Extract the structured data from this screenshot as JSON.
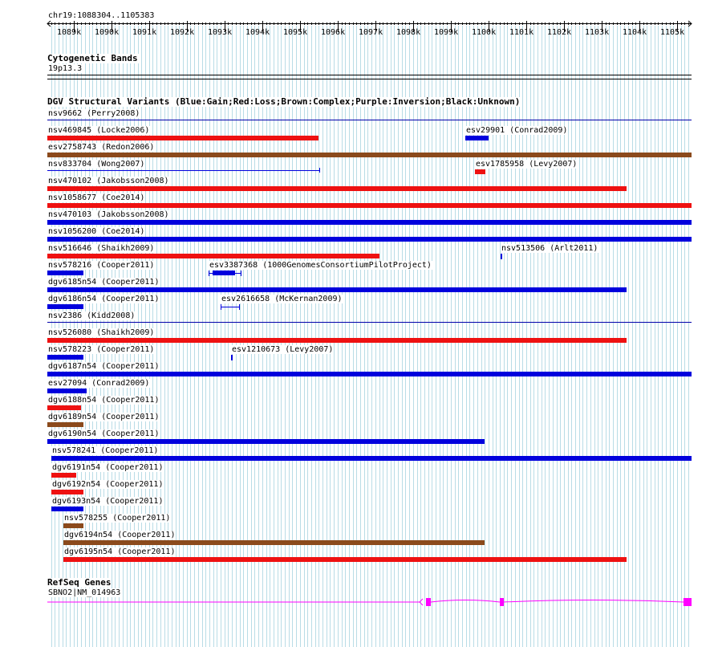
{
  "region_label": "chr19:1088304..1105383",
  "ruler": {
    "start_bp": 1088304,
    "end_bp": 1105383,
    "unit": "k",
    "ticks": [
      "1089k",
      "1090k",
      "1091k",
      "1092k",
      "1093k",
      "1094k",
      "1095k",
      "1096k",
      "1097k",
      "1098k",
      "1099k",
      "1100k",
      "1101k",
      "1102k",
      "1103k",
      "1104k",
      "1105k"
    ]
  },
  "tracks": {
    "cytobands": {
      "title": "Cytogenetic Bands",
      "band": "19p13.3"
    },
    "dgv": {
      "title": "DGV Structural Variants (Blue:Gain;Red:Loss;Brown:Complex;Purple:Inversion;Black:Unknown)",
      "colors": {
        "gain": "#0000dd",
        "loss": "#ee1111",
        "complex": "#8b4a1c"
      },
      "rows": [
        {
          "features": [
            {
              "id": "nsv9662",
              "label": "nsv9662 (Perry2008)",
              "start": 1088304,
              "end": 1105383,
              "kind": "line"
            }
          ]
        },
        {
          "features": [
            {
              "id": "nsv469845",
              "label": "nsv469845 (Locke2006)",
              "start": 1088304,
              "end": 1095500,
              "kind": "loss"
            },
            {
              "id": "esv29901",
              "label": "esv29901 (Conrad2009)",
              "start": 1099380,
              "end": 1100000,
              "kind": "gain"
            }
          ]
        },
        {
          "features": [
            {
              "id": "esv2758743",
              "label": "esv2758743 (Redon2006)",
              "start": 1088304,
              "end": 1105383,
              "kind": "complex"
            }
          ]
        },
        {
          "features": [
            {
              "id": "nsv833704",
              "label": "nsv833704 (Wong2007)",
              "start": 1088304,
              "end": 1095520,
              "kind": "thin"
            },
            {
              "id": "esv1785958",
              "label": "esv1785958 (Levy2007)",
              "start": 1099650,
              "end": 1099920,
              "kind": "loss"
            }
          ]
        },
        {
          "features": [
            {
              "id": "nsv470102",
              "label": "nsv470102 (Jakobsson2008)",
              "start": 1088304,
              "end": 1103650,
              "kind": "loss"
            }
          ]
        },
        {
          "features": [
            {
              "id": "nsv1058677",
              "label": "nsv1058677 (Coe2014)",
              "start": 1088304,
              "end": 1105383,
              "kind": "loss"
            }
          ]
        },
        {
          "features": [
            {
              "id": "nsv470103",
              "label": "nsv470103 (Jakobsson2008)",
              "start": 1088304,
              "end": 1105383,
              "kind": "gain"
            }
          ]
        },
        {
          "features": [
            {
              "id": "nsv1056200",
              "label": "nsv1056200 (Coe2014)",
              "start": 1088304,
              "end": 1105383,
              "kind": "gain"
            }
          ]
        },
        {
          "features": [
            {
              "id": "nsv516646",
              "label": "nsv516646 (Shaikh2009)",
              "start": 1088304,
              "end": 1097110,
              "kind": "loss"
            },
            {
              "id": "nsv513506",
              "label": "nsv513506 (Arlt2011)",
              "start": 1100330,
              "end": 1100370,
              "kind": "gain"
            }
          ]
        },
        {
          "features": [
            {
              "id": "nsv578216",
              "label": "nsv578216 (Cooper2011)",
              "start": 1088304,
              "end": 1089260,
              "kind": "gain"
            },
            {
              "id": "esv3387368",
              "label": "esv3387368 (1000GenomesConsortiumPilotProject)",
              "start": 1092570,
              "end": 1093430,
              "kind": "gain-whisker"
            }
          ]
        },
        {
          "features": [
            {
              "id": "dgv6185n54",
              "label": "dgv6185n54 (Cooper2011)",
              "start": 1088304,
              "end": 1103650,
              "kind": "gain"
            }
          ]
        },
        {
          "features": [
            {
              "id": "dgv6186n54",
              "label": "dgv6186n54 (Cooper2011)",
              "start": 1088304,
              "end": 1089260,
              "kind": "gain"
            },
            {
              "id": "esv2616658",
              "label": "esv2616658 (McKernan2009)",
              "start": 1092900,
              "end": 1093380,
              "kind": "whisker"
            }
          ]
        },
        {
          "features": [
            {
              "id": "nsv2386",
              "label": "nsv2386 (Kidd2008)",
              "start": 1088304,
              "end": 1105383,
              "kind": "line"
            }
          ]
        },
        {
          "features": [
            {
              "id": "nsv526080",
              "label": "nsv526080 (Shaikh2009)",
              "start": 1088304,
              "end": 1103650,
              "kind": "loss"
            }
          ]
        },
        {
          "features": [
            {
              "id": "nsv578223",
              "label": "nsv578223 (Cooper2011)",
              "start": 1088304,
              "end": 1089260,
              "kind": "gain"
            },
            {
              "id": "esv1210673",
              "label": "esv1210673 (Levy2007)",
              "start": 1093180,
              "end": 1093220,
              "kind": "gain"
            }
          ]
        },
        {
          "features": [
            {
              "id": "dgv6187n54",
              "label": "dgv6187n54 (Cooper2011)",
              "start": 1088304,
              "end": 1105383,
              "kind": "gain"
            }
          ]
        },
        {
          "features": [
            {
              "id": "esv27094",
              "label": "esv27094 (Conrad2009)",
              "start": 1088304,
              "end": 1089340,
              "kind": "gain"
            }
          ]
        },
        {
          "features": [
            {
              "id": "dgv6188n54",
              "label": "dgv6188n54 (Cooper2011)",
              "start": 1088304,
              "end": 1089200,
              "kind": "loss"
            }
          ]
        },
        {
          "features": [
            {
              "id": "dgv6189n54",
              "label": "dgv6189n54 (Cooper2011)",
              "start": 1088304,
              "end": 1089260,
              "kind": "complex"
            }
          ]
        },
        {
          "features": [
            {
              "id": "dgv6190n54",
              "label": "dgv6190n54 (Cooper2011)",
              "start": 1088304,
              "end": 1099890,
              "kind": "gain"
            }
          ]
        },
        {
          "features": [
            {
              "id": "nsv578241",
              "label": "nsv578241 (Cooper2011)",
              "start": 1088420,
              "end": 1105383,
              "kind": "gain"
            }
          ]
        },
        {
          "features": [
            {
              "id": "dgv6191n54",
              "label": "dgv6191n54 (Cooper2011)",
              "start": 1088420,
              "end": 1089060,
              "kind": "loss"
            }
          ]
        },
        {
          "features": [
            {
              "id": "dgv6192n54",
              "label": "dgv6192n54 (Cooper2011)",
              "start": 1088420,
              "end": 1089260,
              "kind": "loss"
            }
          ]
        },
        {
          "features": [
            {
              "id": "dgv6193n54",
              "label": "dgv6193n54 (Cooper2011)",
              "start": 1088420,
              "end": 1089260,
              "kind": "gain"
            }
          ]
        },
        {
          "features": [
            {
              "id": "nsv578255",
              "label": "nsv578255 (Cooper2011)",
              "start": 1088720,
              "end": 1089260,
              "kind": "complex"
            }
          ]
        },
        {
          "features": [
            {
              "id": "dgv6194n54",
              "label": "dgv6194n54 (Cooper2011)",
              "start": 1088720,
              "end": 1099890,
              "kind": "complex"
            }
          ]
        },
        {
          "features": [
            {
              "id": "dgv6195n54",
              "label": "dgv6195n54 (Cooper2011)",
              "start": 1088720,
              "end": 1103650,
              "kind": "loss"
            }
          ]
        }
      ]
    },
    "refseq": {
      "title": "RefSeq Genes",
      "gene_label": "SBNO2|NM_014963",
      "color": "#ff00ff",
      "start": 1088304,
      "end": 1105383,
      "exons": [
        [
          1098340,
          1098460
        ],
        [
          1100310,
          1100400
        ],
        [
          1105170,
          1105383
        ]
      ]
    }
  }
}
